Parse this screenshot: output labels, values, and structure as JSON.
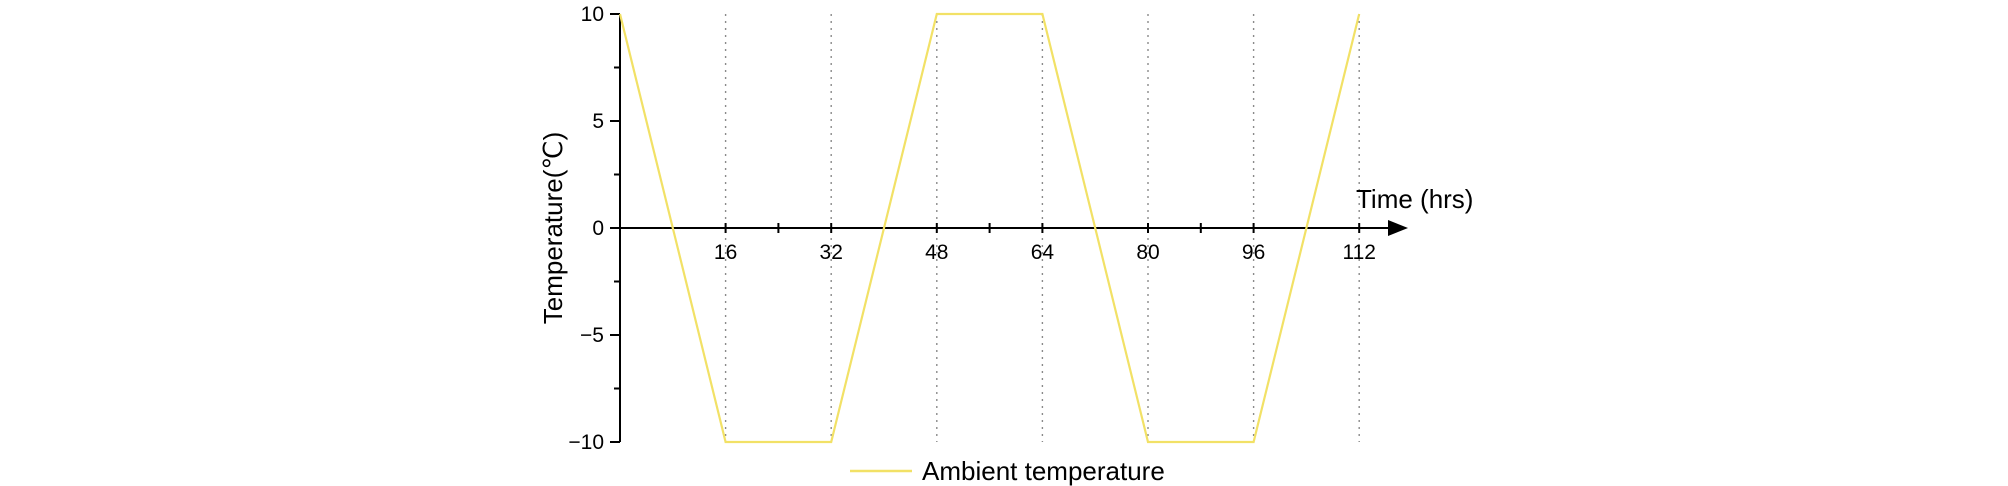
{
  "chart_data": {
    "type": "line",
    "title": "",
    "xlabel": "Time (hrs)",
    "ylabel": "Temperature(℃)",
    "xlim": [
      0,
      120
    ],
    "ylim": [
      -10,
      10
    ],
    "x_ticks_labeled": [
      16,
      32,
      48,
      64,
      80,
      96,
      112
    ],
    "x_ticks_minor": [
      24,
      56,
      88
    ],
    "y_ticks": [
      10,
      5,
      0,
      -5,
      -10
    ],
    "y_tick_labels": [
      "10",
      "5",
      "0",
      "−5",
      "−10"
    ],
    "grid": "vertical dotted lines at labeled x ticks",
    "legend": "bottom-center",
    "series": [
      {
        "name": "Ambient temperature",
        "color": "#f2e166",
        "x": [
          0,
          16,
          32,
          48,
          64,
          80,
          96,
          112
        ],
        "y": [
          10,
          -10,
          -10,
          10,
          10,
          -10,
          -10,
          10
        ]
      }
    ]
  }
}
